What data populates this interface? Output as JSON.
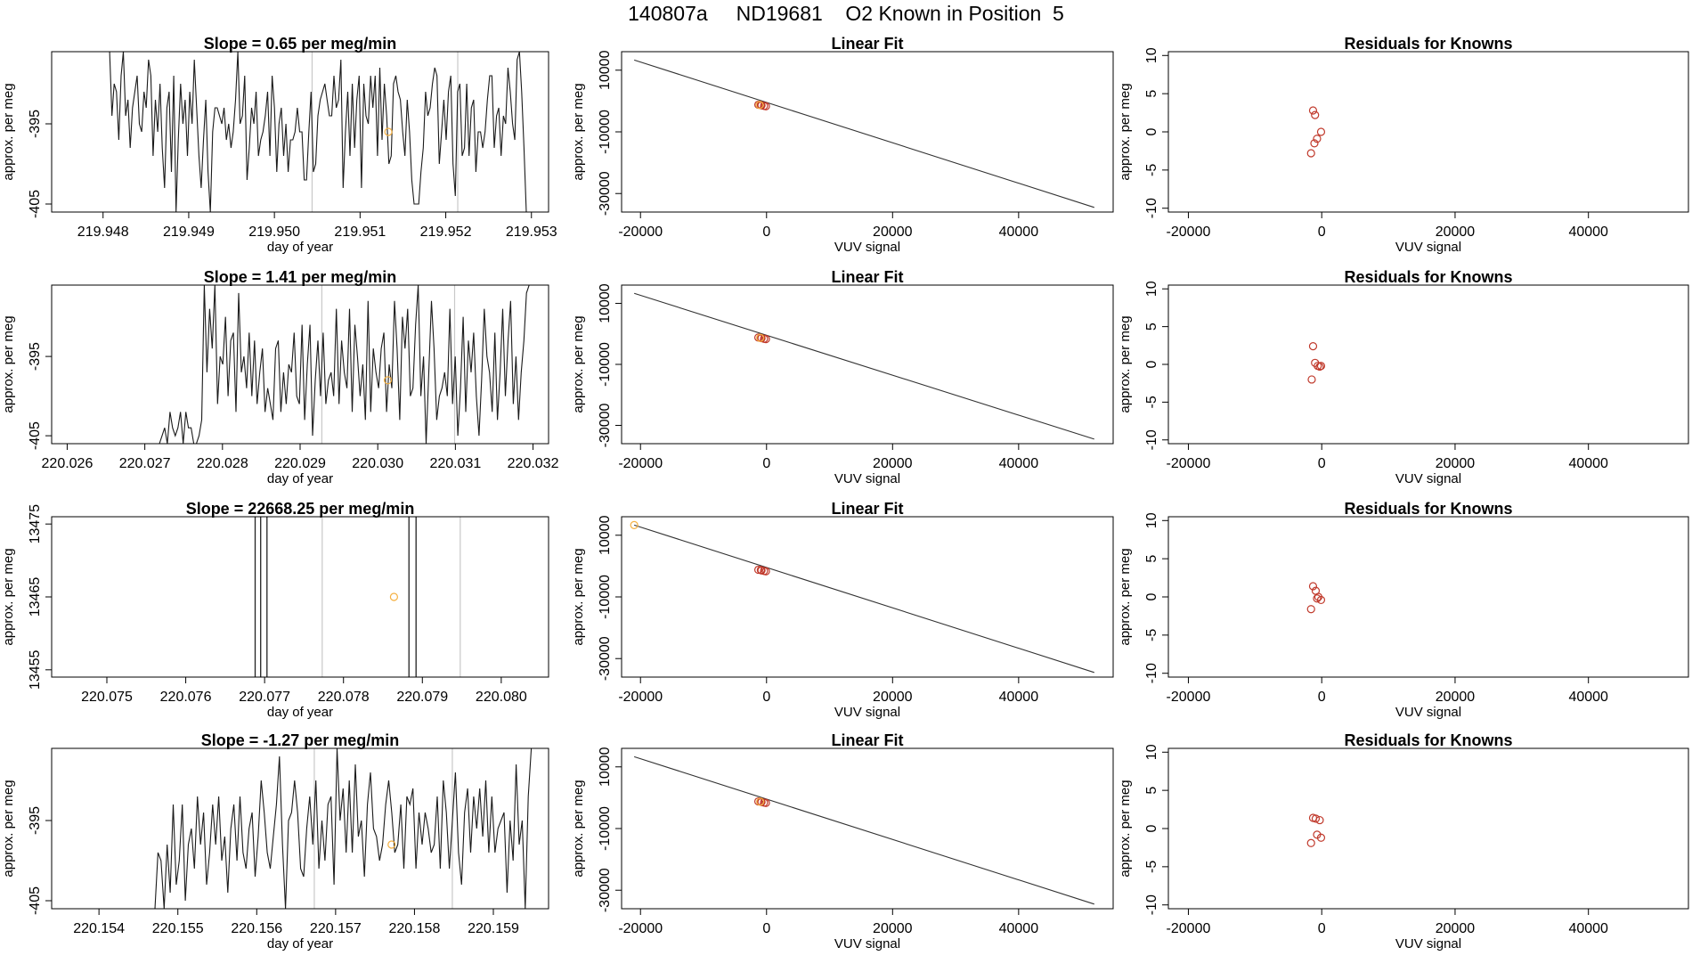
{
  "header": {
    "title": "140807a     ND19681    O2 Known in Position  5"
  },
  "colors": {
    "axis": "#000000",
    "trace": "#1a1a1a",
    "vline": "#c8c8c8",
    "fitline": "#333333",
    "known_point": "#c0392b",
    "unknown_point": "#f5b041"
  },
  "chart_data": [
    {
      "row": 1,
      "panel": "time-series",
      "type": "line",
      "title": "Slope =  0.65  per meg/min",
      "xlabel": "day of year",
      "ylabel": "approx. per meg",
      "xlim": [
        219.9474,
        219.9532
      ],
      "ylim": [
        -406,
        -386
      ],
      "xticks": [
        "219.948",
        "219.949",
        "219.950",
        "219.951",
        "219.952",
        "219.953"
      ],
      "yticks": [
        "-395",
        "-405"
      ],
      "vlines": [
        219.95044,
        219.95214
      ],
      "y": [
        -386,
        -386,
        -394,
        -390,
        -391,
        -397,
        -389,
        -386,
        -394,
        -392,
        -398,
        -393,
        -391,
        -389,
        -395,
        -396,
        -391,
        -393,
        -387,
        -389,
        -399,
        -392,
        -396,
        -390,
        -398,
        -403,
        -393,
        -391,
        -401,
        -389,
        -406,
        -397,
        -390,
        -395,
        -392,
        -399,
        -391,
        -395,
        -387,
        -393,
        -399,
        -403,
        -397,
        -392,
        -401,
        -406,
        -396,
        -393,
        -393,
        -394,
        -395,
        -393,
        -397,
        -395,
        -398,
        -396,
        -392,
        -386,
        -395,
        -394,
        -389,
        -402,
        -398,
        -393,
        -395,
        -391,
        -399,
        -397,
        -396,
        -394,
        -391,
        -399,
        -389,
        -393,
        -401,
        -395,
        -393,
        -399,
        -395,
        -401,
        -397,
        -397,
        -396,
        -393,
        -396,
        -396,
        -402,
        -402,
        -396,
        -391,
        -401,
        -400,
        -394,
        -392,
        -391,
        -390,
        -392,
        -394,
        -394,
        -389,
        -393,
        -392,
        -387,
        -403,
        -396,
        -391,
        -399,
        -390,
        -398,
        -392,
        -389,
        -403,
        -390,
        -394,
        -395,
        -389,
        -393,
        -389,
        -399,
        -388,
        -397,
        -390,
        -394,
        -400,
        -399,
        -390,
        -389,
        -391,
        -392,
        -396,
        -399,
        -392,
        -396,
        -402,
        -405,
        -405,
        -405,
        -401,
        -398,
        -391,
        -394,
        -393,
        -390,
        -388,
        -389,
        -400,
        -396,
        -392,
        -397,
        -391,
        -389,
        -400,
        -404,
        -391,
        -390,
        -399,
        -398,
        -390,
        -399,
        -393,
        -392,
        -401,
        -396,
        -396,
        -398,
        -396,
        -392,
        -389,
        -389,
        -398,
        -394,
        -393,
        -399,
        -394,
        -395,
        -388,
        -391,
        -395,
        -397,
        -387,
        -386,
        -391,
        -398,
        -406
      ],
      "x_start": 219.94805,
      "x_end": 219.95294,
      "highlight_point": {
        "x": 219.95133,
        "y": -396
      }
    },
    {
      "row": 1,
      "panel": "linear-fit",
      "type": "scatter",
      "title": "Linear Fit",
      "xlabel": "VUV signal",
      "ylabel": "approx. per meg",
      "xlim": [
        -23000,
        55000
      ],
      "ylim": [
        -36000,
        16000
      ],
      "xticks": [
        -20000,
        0,
        20000,
        40000
      ],
      "yticks": [
        10000,
        -10000,
        -30000
      ],
      "fit_line": [
        [
          -21000,
          13300
        ],
        [
          52000,
          -34500
        ]
      ],
      "known_points": [
        [
          -1300,
          -1200
        ],
        [
          -800,
          -1400
        ],
        [
          -400,
          -1600
        ],
        [
          -100,
          -1700
        ],
        [
          -900,
          -1300
        ]
      ],
      "unknown_points": [
        [
          -1100,
          -1300
        ]
      ]
    },
    {
      "row": 1,
      "panel": "residuals",
      "type": "scatter",
      "title": "Residuals for Knowns",
      "xlabel": "VUV signal",
      "ylabel": "approx. per meg",
      "xlim": [
        -23000,
        55000
      ],
      "ylim": [
        -10.5,
        10.5
      ],
      "xticks": [
        -20000,
        0,
        20000,
        40000
      ],
      "yticks": [
        10,
        5,
        0,
        -5,
        -10
      ],
      "known_points": [
        [
          -1300,
          2.8
        ],
        [
          -1000,
          2.2
        ],
        [
          -100,
          0.0
        ],
        [
          -700,
          -0.9
        ],
        [
          -1100,
          -1.5
        ],
        [
          -1600,
          -2.8
        ]
      ]
    },
    {
      "row": 2,
      "panel": "time-series",
      "type": "line",
      "title": "Slope =  1.41  per meg/min",
      "xlabel": "day of year",
      "ylabel": "approx. per meg",
      "xlim": [
        220.0258,
        220.0322
      ],
      "ylim": [
        -406,
        -386
      ],
      "xticks": [
        "220.026",
        "220.027",
        "220.028",
        "220.029",
        "220.030",
        "220.031",
        "220.032"
      ],
      "yticks": [
        "-395",
        "-405"
      ],
      "vlines": [
        220.02928,
        220.03099
      ],
      "y": [
        -406,
        -406,
        -406,
        -405,
        -404,
        -406,
        -402,
        -404,
        -405,
        -404,
        -402,
        -406,
        -402,
        -404,
        -404,
        -406,
        -406,
        -405,
        -403,
        -386,
        -397,
        -389,
        -394,
        -386,
        -401,
        -395,
        -396,
        -390,
        -400,
        -393,
        -392,
        -402,
        -387,
        -397,
        -395,
        -399,
        -392,
        -400,
        -393,
        -401,
        -397,
        -394,
        -402,
        -399,
        -401,
        -403,
        -394,
        -393,
        -402,
        -397,
        -401,
        -396,
        -397,
        -392,
        -400,
        -401,
        -391,
        -403,
        -396,
        -391,
        -405,
        -398,
        -393,
        -400,
        -392,
        -401,
        -398,
        -397,
        -400,
        -389,
        -401,
        -393,
        -397,
        -399,
        -389,
        -402,
        -391,
        -395,
        -400,
        -396,
        -403,
        -388,
        -402,
        -394,
        -397,
        -399,
        -394,
        -392,
        -402,
        -396,
        -399,
        -388,
        -394,
        -403,
        -390,
        -394,
        -389,
        -400,
        -399,
        -391,
        -386,
        -400,
        -395,
        -406,
        -397,
        -388,
        -394,
        -403,
        -400,
        -399,
        -397,
        -400,
        -389,
        -401,
        -395,
        -405,
        -399,
        -390,
        -402,
        -393,
        -397,
        -392,
        -400,
        -405,
        -398,
        -389,
        -395,
        -397,
        -402,
        -392,
        -403,
        -397,
        -389,
        -400,
        -393,
        -388,
        -401,
        -395,
        -403,
        -397,
        -393,
        -387,
        -386
      ],
      "x_start": 220.02712,
      "x_end": 220.03195,
      "highlight_point": {
        "x": 220.03013,
        "y": -398
      }
    },
    {
      "row": 2,
      "panel": "linear-fit",
      "type": "scatter",
      "title": "Linear Fit",
      "xlabel": "VUV signal",
      "ylabel": "approx. per meg",
      "xlim": [
        -23000,
        55000
      ],
      "ylim": [
        -36000,
        16000
      ],
      "xticks": [
        -20000,
        0,
        20000,
        40000
      ],
      "yticks": [
        10000,
        -10000,
        -30000
      ],
      "fit_line": [
        [
          -21000,
          13300
        ],
        [
          52000,
          -34500
        ]
      ],
      "known_points": [
        [
          -1300,
          -1200
        ],
        [
          -800,
          -1400
        ],
        [
          -400,
          -1600
        ],
        [
          -100,
          -1700
        ],
        [
          -900,
          -1300
        ]
      ],
      "unknown_points": [
        [
          -1000,
          -1300
        ]
      ]
    },
    {
      "row": 2,
      "panel": "residuals",
      "type": "scatter",
      "title": "Residuals for Knowns",
      "xlabel": "VUV signal",
      "ylabel": "approx. per meg",
      "xlim": [
        -23000,
        55000
      ],
      "ylim": [
        -10.5,
        10.5
      ],
      "xticks": [
        -20000,
        0,
        20000,
        40000
      ],
      "yticks": [
        10,
        5,
        0,
        -5,
        -10
      ],
      "known_points": [
        [
          -1300,
          2.4
        ],
        [
          -1000,
          0.2
        ],
        [
          -600,
          -0.2
        ],
        [
          -100,
          -0.2
        ],
        [
          -300,
          -0.3
        ],
        [
          -1500,
          -2.0
        ]
      ]
    },
    {
      "row": 3,
      "panel": "time-series",
      "type": "line",
      "title": "Slope =  22668.25  per meg/min",
      "xlabel": "day of year",
      "ylabel": "approx. per meg",
      "xlim": [
        220.0743,
        220.0806
      ],
      "ylim": [
        13454,
        13476
      ],
      "xticks": [
        "220.075",
        "220.076",
        "220.077",
        "220.078",
        "220.079",
        "220.080"
      ],
      "yticks": [
        "13475",
        "13465",
        "13455"
      ],
      "vlines": [
        220.07773,
        220.07948
      ],
      "spikes": [
        220.07688,
        220.07695,
        220.07703,
        220.07883,
        220.07892
      ],
      "highlight_point": {
        "x": 220.07864,
        "y": 13465
      }
    },
    {
      "row": 3,
      "panel": "linear-fit",
      "type": "scatter",
      "title": "Linear Fit",
      "xlabel": "VUV signal",
      "ylabel": "approx. per meg",
      "xlim": [
        -23000,
        55000
      ],
      "ylim": [
        -36000,
        16000
      ],
      "xticks": [
        -20000,
        0,
        20000,
        40000
      ],
      "yticks": [
        10000,
        -10000,
        -30000
      ],
      "fit_line": [
        [
          -21000,
          13300
        ],
        [
          52000,
          -34500
        ]
      ],
      "known_points": [
        [
          -1300,
          -1200
        ],
        [
          -800,
          -1400
        ],
        [
          -400,
          -1600
        ],
        [
          -100,
          -1700
        ],
        [
          -900,
          -1300
        ]
      ],
      "unknown_points": [
        [
          -21000,
          13300
        ]
      ]
    },
    {
      "row": 3,
      "panel": "residuals",
      "type": "scatter",
      "title": "Residuals for Knowns",
      "xlabel": "VUV signal",
      "ylabel": "approx. per meg",
      "xlim": [
        -23000,
        55000
      ],
      "ylim": [
        -10.5,
        10.5
      ],
      "xticks": [
        -20000,
        0,
        20000,
        40000
      ],
      "yticks": [
        10,
        5,
        0,
        -5,
        -10
      ],
      "known_points": [
        [
          -1300,
          1.4
        ],
        [
          -900,
          0.8
        ],
        [
          -500,
          0.0
        ],
        [
          -100,
          -0.4
        ],
        [
          -700,
          -0.2
        ],
        [
          -1600,
          -1.6
        ]
      ]
    },
    {
      "row": 4,
      "panel": "time-series",
      "type": "line",
      "title": "Slope =  -1.27  per meg/min",
      "xlabel": "day of year",
      "ylabel": "approx. per meg",
      "xlim": [
        220.1534,
        220.1597
      ],
      "ylim": [
        -406,
        -386
      ],
      "xticks": [
        "220.154",
        "220.155",
        "220.156",
        "220.157",
        "220.158",
        "220.159"
      ],
      "yticks": [
        "-395",
        "-405"
      ],
      "vlines": [
        220.15673,
        220.15848
      ],
      "y": [
        -406,
        -399,
        -400,
        -406,
        -398,
        -404,
        -393,
        -403,
        -400,
        -393,
        -405,
        -398,
        -396,
        -401,
        -392,
        -398,
        -394,
        -403,
        -399,
        -393,
        -398,
        -392,
        -400,
        -397,
        -404,
        -396,
        -393,
        -400,
        -392,
        -399,
        -401,
        -396,
        -394,
        -402,
        -397,
        -390,
        -394,
        -399,
        -401,
        -397,
        -393,
        -387,
        -398,
        -406,
        -395,
        -394,
        -390,
        -394,
        -401,
        -402,
        -396,
        -392,
        -398,
        -390,
        -401,
        -395,
        -400,
        -393,
        -392,
        -403,
        -386,
        -395,
        -391,
        -399,
        -390,
        -399,
        -388,
        -397,
        -395,
        -402,
        -393,
        -389,
        -396,
        -397,
        -400,
        -398,
        -393,
        -390,
        -394,
        -399,
        -398,
        -393,
        -401,
        -392,
        -393,
        -391,
        -401,
        -394,
        -398,
        -394,
        -396,
        -399,
        -398,
        -392,
        -401,
        -390,
        -394,
        -401,
        -395,
        -389,
        -399,
        -403,
        -394,
        -391,
        -399,
        -392,
        -396,
        -391,
        -397,
        -390,
        -399,
        -392,
        -399,
        -396,
        -395,
        -394,
        -404,
        -395,
        -400,
        -388,
        -398,
        -395,
        -406,
        -392,
        -386,
        -386
      ],
      "x_start": 220.15471,
      "x_end": 220.15952,
      "highlight_point": {
        "x": 220.15771,
        "y": -398
      }
    },
    {
      "row": 4,
      "panel": "linear-fit",
      "type": "scatter",
      "title": "Linear Fit",
      "xlabel": "VUV signal",
      "ylabel": "approx. per meg",
      "xlim": [
        -23000,
        55000
      ],
      "ylim": [
        -36000,
        16000
      ],
      "xticks": [
        -20000,
        0,
        20000,
        40000
      ],
      "yticks": [
        10000,
        -10000,
        -30000
      ],
      "fit_line": [
        [
          -21000,
          13300
        ],
        [
          52000,
          -34500
        ]
      ],
      "known_points": [
        [
          -1300,
          -1200
        ],
        [
          -800,
          -1400
        ],
        [
          -400,
          -1600
        ],
        [
          -100,
          -1700
        ],
        [
          -900,
          -1300
        ]
      ],
      "unknown_points": [
        [
          -1000,
          -1300
        ]
      ]
    },
    {
      "row": 4,
      "panel": "residuals",
      "type": "scatter",
      "title": "Residuals for Knowns",
      "xlabel": "VUV signal",
      "ylabel": "approx. per meg",
      "xlim": [
        -23000,
        55000
      ],
      "ylim": [
        -10.5,
        10.5
      ],
      "xticks": [
        -20000,
        0,
        20000,
        40000
      ],
      "yticks": [
        10,
        5,
        0,
        -5,
        -10
      ],
      "known_points": [
        [
          -1300,
          1.4
        ],
        [
          -900,
          1.3
        ],
        [
          -300,
          1.1
        ],
        [
          -700,
          -0.8
        ],
        [
          -100,
          -1.2
        ],
        [
          -1600,
          -1.9
        ]
      ]
    }
  ]
}
